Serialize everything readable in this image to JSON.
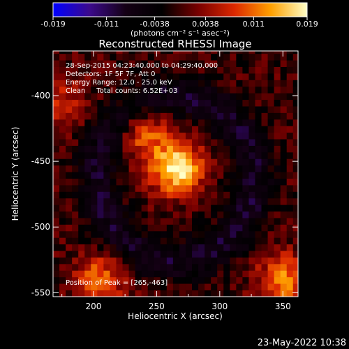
{
  "chart_data": {
    "type": "heatmap",
    "title": "Reconstructed RHESSI Image",
    "xlabel": "Heliocentric X (arcsec)",
    "ylabel": "Heliocentric Y (arcsec)",
    "xlim": [
      168,
      362
    ],
    "ylim": [
      -553,
      -366
    ],
    "x_ticks": [
      200,
      250,
      300,
      350
    ],
    "y_ticks": [
      -550,
      -500,
      -450,
      -400
    ],
    "colorbar": {
      "ticks": [
        "-0.019",
        "-0.011",
        "-0.0038",
        "0.0038",
        "0.011",
        "0.019"
      ],
      "values": [
        -0.019,
        -0.011,
        -0.0038,
        0.0038,
        0.011,
        0.019
      ],
      "range": [
        -0.019,
        0.019
      ],
      "units": "(photons cm⁻² s⁻¹ asec⁻²)",
      "colors": [
        "#0000ff",
        "#3c0a8c",
        "#140014",
        "#000000",
        "#780000",
        "#dc2800",
        "#ffa000",
        "#ffffc8"
      ]
    },
    "annotations": [
      "28-Sep-2015 04:23:40.000 to 04:29:40.000",
      "Detectors: 1F 5F 7F, Att 0",
      "Energy Range: 12.0 - 25.0 keV",
      "Clean     Total counts: 6.52E+03"
    ],
    "peak_label": "Position of Peak = [265,-463]",
    "peak": [
      265,
      -463
    ],
    "sources": [
      {
        "x": 266,
        "y": -455,
        "amp": 0.019
      },
      {
        "x": 240,
        "y": -428,
        "amp": 0.01
      },
      {
        "x": 205,
        "y": -540,
        "amp": 0.011
      },
      {
        "x": 350,
        "y": -540,
        "amp": 0.012
      },
      {
        "x": 175,
        "y": -405,
        "amp": 0.006
      }
    ]
  },
  "footer": {
    "timestamp": "23-May-2022 10:38"
  }
}
